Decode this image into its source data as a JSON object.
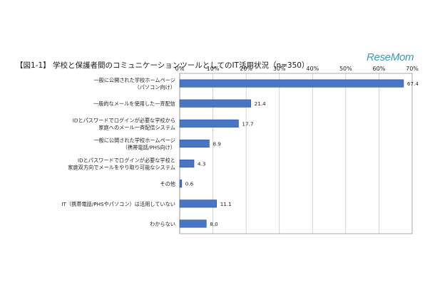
{
  "chart_data": {
    "type": "bar",
    "orientation": "horizontal",
    "title": "【図1-1】 学校と保護者間のコミュニケーションツールとしてのIT活用状況（n=350）",
    "watermark": "ReseMom",
    "xlim": [
      0,
      70
    ],
    "ticks": [
      "0%",
      "10%",
      "20%",
      "30%",
      "40%",
      "50%",
      "60%",
      "70%"
    ],
    "grid": true,
    "bar_color": "#4a74c4",
    "categories": [
      [
        "一般に公開された学校ホームページ",
        "（パソコン向け）"
      ],
      [
        "一般的なメールを使用した一斉配信"
      ],
      [
        "IDとパスワードでログインが必要な学校から",
        "家庭へのメール一斉配信システム"
      ],
      [
        "一般に公開された学校ホームページ",
        "（携帯電話/PHS向け）"
      ],
      [
        "IDとパスワードでログインが必要な学校と",
        "家庭双方向でメールをやり取り可能なシステム"
      ],
      [
        "その他"
      ],
      [
        "IT（携帯電話/PHSやパソコン）は活用していない"
      ],
      [
        "わからない"
      ]
    ],
    "values": [
      67.4,
      21.4,
      17.7,
      8.9,
      4.3,
      0.6,
      11.1,
      8.0
    ],
    "value_labels": [
      "67.4",
      "21.4",
      "17.7",
      "8.9",
      "4.3",
      "0.6",
      "11.1",
      "8.0"
    ]
  }
}
